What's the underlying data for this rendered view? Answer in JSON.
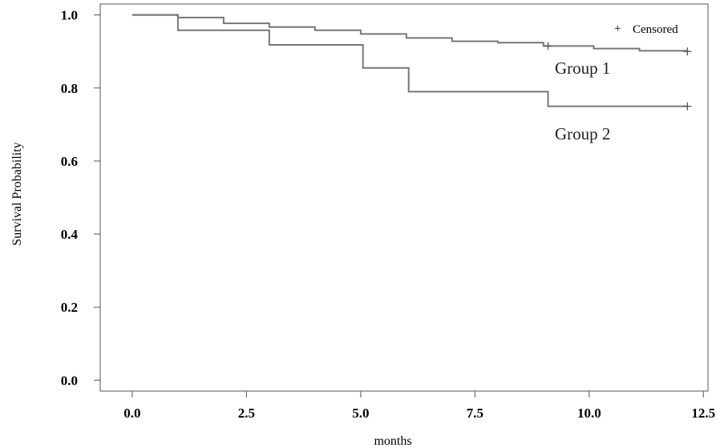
{
  "chart_data": {
    "type": "line",
    "style": "step",
    "xlabel": "months",
    "ylabel": "Survival Probability",
    "xlim": [
      -0.7,
      12.6
    ],
    "ylim": [
      -0.03,
      1.03
    ],
    "x_ticks": [
      "0.0",
      "2.5",
      "5.0",
      "7.5",
      "10.0",
      "12.5"
    ],
    "y_ticks": [
      "0.0",
      "0.2",
      "0.4",
      "0.6",
      "0.8",
      "1.0"
    ],
    "legend": {
      "marker": "+",
      "label": "Censored",
      "position": "top-right"
    },
    "series": [
      {
        "name": "Group 1",
        "x": [
          0,
          1,
          2,
          3,
          4,
          5,
          6,
          7,
          8,
          9,
          10.1,
          11.1,
          12.15
        ],
        "y": [
          1.0,
          0.993,
          0.977,
          0.967,
          0.958,
          0.948,
          0.937,
          0.928,
          0.924,
          0.915,
          0.908,
          0.902,
          0.9
        ],
        "censored": [
          {
            "x": 9.1,
            "y": 0.915
          },
          {
            "x": 12.15,
            "y": 0.9
          }
        ]
      },
      {
        "name": "Group 2",
        "x": [
          0,
          1,
          3,
          5.05,
          6.05,
          9.1,
          12.15
        ],
        "y": [
          1.0,
          0.958,
          0.918,
          0.855,
          0.79,
          0.75,
          0.75
        ],
        "censored": [
          {
            "x": 12.15,
            "y": 0.75
          }
        ]
      }
    ]
  }
}
